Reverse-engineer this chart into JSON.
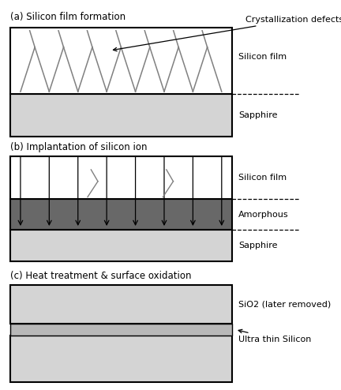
{
  "title_a": "(a) Silicon film formation",
  "title_b": "(b) Implantation of silicon ion",
  "title_c": "(c) Heat treatment & surface oxidation",
  "label_crystallization": "Crystallization defects",
  "label_silicon_film_a": "Silicon film",
  "label_sapphire_a": "Sapphire",
  "label_silicon_film_b": "Silicon film",
  "label_amorphous": "Amorphous",
  "label_sapphire_b": "Sapphire",
  "label_sio2": "SiO2 (later removed)",
  "label_ultra_thin": "Ultra thin Silicon",
  "color_white": "#ffffff",
  "color_light_gray": "#d4d4d4",
  "color_dark_gray": "#686868",
  "color_medium_gray": "#b8b8b8",
  "color_black": "#000000",
  "color_bg": "#ffffff",
  "color_defect": "#808080",
  "font_size_title": 8.5,
  "font_size_label": 8.0
}
